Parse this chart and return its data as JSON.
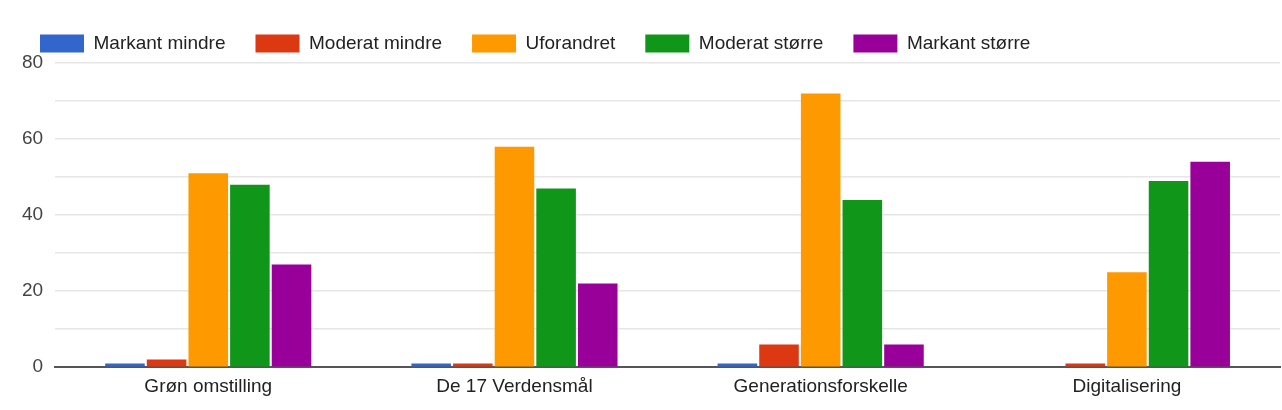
{
  "chart_data": {
    "type": "bar",
    "categories": [
      "Grøn omstilling",
      "De 17 Verdensmål",
      "Generationsforskelle",
      "Digitalisering"
    ],
    "series": [
      {
        "name": "Markant mindre",
        "color": "#3366cc",
        "values": [
          1,
          1,
          1,
          0
        ]
      },
      {
        "name": "Moderat mindre",
        "color": "#dc3912",
        "values": [
          2,
          1,
          6,
          1
        ]
      },
      {
        "name": "Uforandret",
        "color": "#ff9900",
        "values": [
          51,
          58,
          72,
          25
        ]
      },
      {
        "name": "Moderat større",
        "color": "#109618",
        "values": [
          48,
          47,
          44,
          49
        ]
      },
      {
        "name": "Markant større",
        "color": "#990099",
        "values": [
          27,
          22,
          6,
          54
        ]
      }
    ],
    "ylim": [
      0,
      80
    ],
    "yticks": [
      0,
      {
        "value": 10,
        "label": null
      },
      20,
      {
        "value": 30,
        "label": null
      },
      40,
      {
        "value": 50,
        "label": null
      },
      60,
      {
        "value": 70,
        "label": null
      },
      80
    ],
    "grid": "y",
    "legend": "top left"
  }
}
